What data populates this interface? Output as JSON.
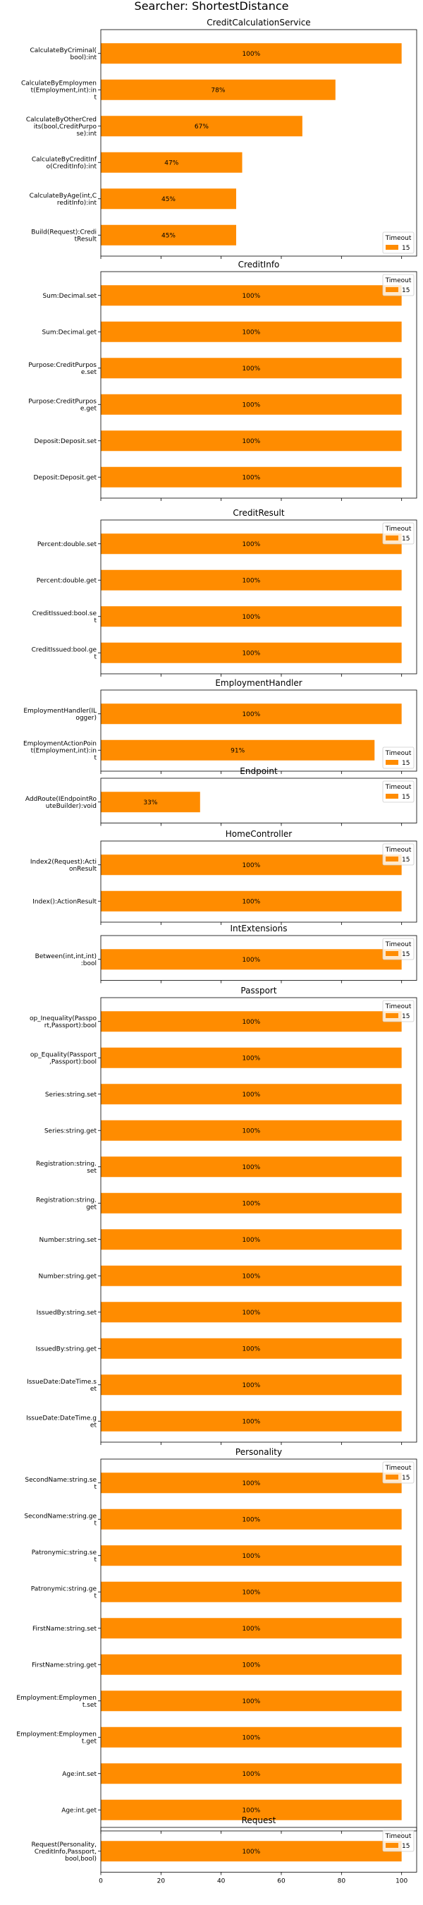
{
  "chart_data": {
    "type": "bar",
    "orientation": "horizontal",
    "title": "Searcher: ShortestDistance",
    "color": "#ff8c00",
    "xlim": [
      0,
      105
    ],
    "xticks": [
      0,
      20,
      40,
      60,
      80,
      100
    ],
    "legend": {
      "title": "Timeout",
      "entries": [
        "15"
      ],
      "placement": "right"
    },
    "panels": [
      {
        "title": "CreditCalculationService",
        "legend_loc": "lower-right",
        "bars": [
          {
            "label": "CalculateByCriminal(\nbool):int",
            "value": 100,
            "text": "100%"
          },
          {
            "label": "CalculateByEmploymen\nt(Employment,int):in\nt",
            "value": 78,
            "text": "78%"
          },
          {
            "label": "CalculateByOtherCred\nits(bool,CreditPurpo\nse):int",
            "value": 67,
            "text": "67%"
          },
          {
            "label": "CalculateByCreditInf\no(CreditInfo):int",
            "value": 47,
            "text": "47%"
          },
          {
            "label": "CalculateByAge(int,C\nreditInfo):int",
            "value": 45,
            "text": "45%"
          },
          {
            "label": "Build(Request):Credi\ntResult",
            "value": 45,
            "text": "45%"
          }
        ]
      },
      {
        "title": "CreditInfo",
        "legend_loc": "upper-right",
        "bars": [
          {
            "label": "Sum:Decimal.set",
            "value": 100,
            "text": "100%"
          },
          {
            "label": "Sum:Decimal.get",
            "value": 100,
            "text": "100%"
          },
          {
            "label": "Purpose:CreditPurpos\ne.set",
            "value": 100,
            "text": "100%"
          },
          {
            "label": "Purpose:CreditPurpos\ne.get",
            "value": 100,
            "text": "100%"
          },
          {
            "label": "Deposit:Deposit.set",
            "value": 100,
            "text": "100%"
          },
          {
            "label": "Deposit:Deposit.get",
            "value": 100,
            "text": "100%"
          }
        ]
      },
      {
        "title": "CreditResult",
        "legend_loc": "upper-right",
        "bars": [
          {
            "label": "Percent:double.set",
            "value": 100,
            "text": "100%"
          },
          {
            "label": "Percent:double.get",
            "value": 100,
            "text": "100%"
          },
          {
            "label": "CreditIssued:bool.se\nt",
            "value": 100,
            "text": "100%"
          },
          {
            "label": "CreditIssued:bool.ge\nt",
            "value": 100,
            "text": "100%"
          }
        ]
      },
      {
        "title": "EmploymentHandler",
        "legend_loc": "lower-right",
        "bars": [
          {
            "label": "EmploymentHandler(IL\nogger)",
            "value": 100,
            "text": "100%"
          },
          {
            "label": "EmploymentActionPoin\nt(Employment,int):in\nt",
            "value": 91,
            "text": "91%"
          }
        ]
      },
      {
        "title": "Endpoint",
        "legend_loc": "upper-right",
        "bars": [
          {
            "label": "AddRoute(IEndpointRo\nuteBuilder):void",
            "value": 33,
            "text": "33%"
          }
        ]
      },
      {
        "title": "HomeController",
        "legend_loc": "upper-right",
        "bars": [
          {
            "label": "Index2(Request):Acti\nonResult",
            "value": 100,
            "text": "100%"
          },
          {
            "label": "Index():ActionResult",
            "value": 100,
            "text": "100%"
          }
        ]
      },
      {
        "title": "IntExtensions",
        "legend_loc": "upper-right",
        "bars": [
          {
            "label": "Between(int,int,int)\n:bool",
            "value": 100,
            "text": "100%"
          }
        ]
      },
      {
        "title": "Passport",
        "legend_loc": "upper-right",
        "bars": [
          {
            "label": "op_Inequality(Passpo\nrt,Passport):bool",
            "value": 100,
            "text": "100%"
          },
          {
            "label": "op_Equality(Passport\n,Passport):bool",
            "value": 100,
            "text": "100%"
          },
          {
            "label": "Series:string.set",
            "value": 100,
            "text": "100%"
          },
          {
            "label": "Series:string.get",
            "value": 100,
            "text": "100%"
          },
          {
            "label": "Registration:string.\nset",
            "value": 100,
            "text": "100%"
          },
          {
            "label": "Registration:string.\nget",
            "value": 100,
            "text": "100%"
          },
          {
            "label": "Number:string.set",
            "value": 100,
            "text": "100%"
          },
          {
            "label": "Number:string.get",
            "value": 100,
            "text": "100%"
          },
          {
            "label": "IssuedBy:string.set",
            "value": 100,
            "text": "100%"
          },
          {
            "label": "IssuedBy:string.get",
            "value": 100,
            "text": "100%"
          },
          {
            "label": "IssueDate:DateTime.s\net",
            "value": 100,
            "text": "100%"
          },
          {
            "label": "IssueDate:DateTime.g\net",
            "value": 100,
            "text": "100%"
          }
        ]
      },
      {
        "title": "Personality",
        "legend_loc": "upper-right",
        "bars": [
          {
            "label": "SecondName:string.se\nt",
            "value": 100,
            "text": "100%"
          },
          {
            "label": "SecondName:string.ge\nt",
            "value": 100,
            "text": "100%"
          },
          {
            "label": "Patronymic:string.se\nt",
            "value": 100,
            "text": "100%"
          },
          {
            "label": "Patronymic:string.ge\nt",
            "value": 100,
            "text": "100%"
          },
          {
            "label": "FirstName:string.set",
            "value": 100,
            "text": "100%"
          },
          {
            "label": "FirstName:string.get",
            "value": 100,
            "text": "100%"
          },
          {
            "label": "Employment:Employmen\nt.set",
            "value": 100,
            "text": "100%"
          },
          {
            "label": "Employment:Employmen\nt.get",
            "value": 100,
            "text": "100%"
          },
          {
            "label": "Age:int.set",
            "value": 100,
            "text": "100%"
          },
          {
            "label": "Age:int.get",
            "value": 100,
            "text": "100%"
          }
        ]
      },
      {
        "title": "Request",
        "legend_loc": "upper-right",
        "bars": [
          {
            "label": "Request(Personality,\nCreditInfo,Passport,\nbool,bool)",
            "value": 100,
            "text": "100%"
          }
        ]
      }
    ]
  }
}
